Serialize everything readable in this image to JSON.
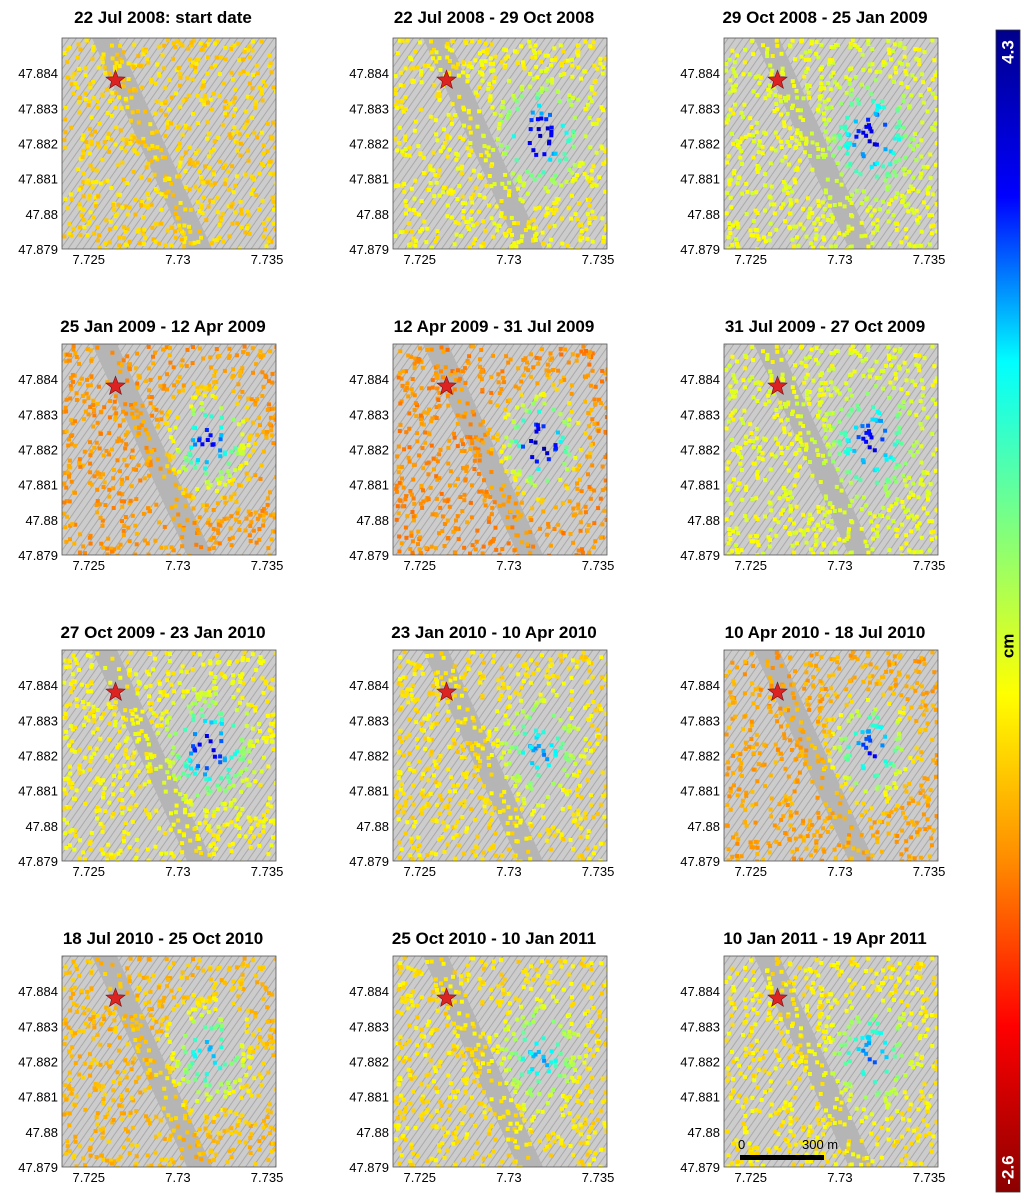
{
  "chart_data": {
    "type": "heatmap",
    "x_ticks": [
      "7.725",
      "7.73",
      "7.735"
    ],
    "y_ticks": [
      "47.884",
      "47.883",
      "47.882",
      "47.881",
      "47.88",
      "47.879"
    ],
    "xlim": [
      7.7235,
      7.7355
    ],
    "ylim": [
      47.879,
      47.885
    ],
    "colorbar": {
      "label": "cm",
      "min": -2.6,
      "max": 4.3,
      "min_label": "-2.6",
      "max_label": "4.3",
      "colors": [
        "#8b0000",
        "#ff0000",
        "#ff8c00",
        "#ffff00",
        "#7fff7f",
        "#00ffff",
        "#0000ff",
        "#00008b"
      ]
    },
    "reference_point": {
      "x": 7.7265,
      "y": 47.8838,
      "marker": "star",
      "color": "#dd2222"
    },
    "scale_bar": {
      "left_label": "0",
      "right_label": "300 m"
    },
    "panels": [
      {
        "title": "22 Jul 2008: start date",
        "background_value": 0.0,
        "center_value": 0.0
      },
      {
        "title": "22 Jul 2008 - 29 Oct 2008",
        "background_value": 0.3,
        "center_value": 4.0
      },
      {
        "title": "29 Oct 2008 - 25 Jan 2009",
        "background_value": 0.5,
        "center_value": 3.8
      },
      {
        "title": "25 Jan 2009 - 12 Apr 2009",
        "background_value": -0.5,
        "center_value": 3.5
      },
      {
        "title": "12 Apr 2009 - 31 Jul 2009",
        "background_value": -0.6,
        "center_value": 4.2
      },
      {
        "title": "31 Jul 2009 - 27 Oct 2009",
        "background_value": 0.5,
        "center_value": 3.6
      },
      {
        "title": "27 Oct 2009 - 23 Jan 2010",
        "background_value": 0.3,
        "center_value": 3.8
      },
      {
        "title": "23 Jan 2010 - 10 Apr 2010",
        "background_value": 0.1,
        "center_value": 2.8
      },
      {
        "title": "10 Apr 2010 - 18 Jul 2010",
        "background_value": -0.4,
        "center_value": 3.4
      },
      {
        "title": "18 Jul 2010 - 25 Oct 2010",
        "background_value": -0.2,
        "center_value": 2.8
      },
      {
        "title": "25 Oct 2010 - 10 Jan 2011",
        "background_value": 0.1,
        "center_value": 2.7
      },
      {
        "title": "10 Jan 2011 - 19 Apr 2011",
        "background_value": 0.2,
        "center_value": 3.0
      }
    ]
  }
}
